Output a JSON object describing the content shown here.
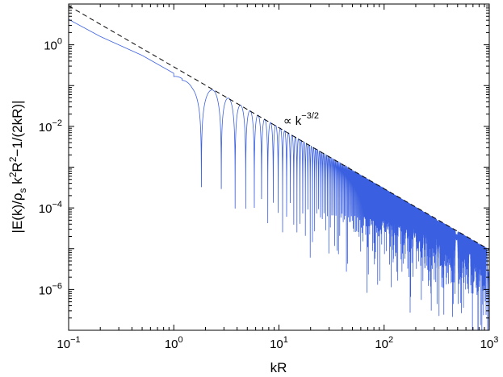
{
  "chart_data": {
    "type": "line",
    "title": "",
    "xlabel": "kR",
    "ylabel_parts": {
      "a": "|E(k)/ρ",
      "sub_s": "s",
      "b": " k",
      "sup_2a": "2",
      "c": "R",
      "sup_2b": "2",
      "d": "−1/(2kR)|"
    },
    "x_scale": "log",
    "y_scale": "log",
    "xlim": [
      0.1,
      1000
    ],
    "ylim": [
      1e-07,
      10
    ],
    "x_ticks": [
      {
        "value": 0.1,
        "base": "10",
        "exp": "−1"
      },
      {
        "value": 1,
        "base": "10",
        "exp": "0"
      },
      {
        "value": 10,
        "base": "10",
        "exp": "1"
      },
      {
        "value": 100,
        "base": "10",
        "exp": "2"
      },
      {
        "value": 1000,
        "base": "10",
        "exp": "3"
      }
    ],
    "y_ticks": [
      {
        "value": 1e-06,
        "base": "10",
        "exp": "−6"
      },
      {
        "value": 0.0001,
        "base": "10",
        "exp": "−4"
      },
      {
        "value": 0.01,
        "base": "10",
        "exp": "−2"
      },
      {
        "value": 1,
        "base": "10",
        "exp": "0"
      }
    ],
    "grid": false,
    "series": [
      {
        "style": "solid",
        "color": "#3a5fe0",
        "description_points": {
          "x": [
            0.1,
            0.2,
            0.5,
            1.0,
            1.5,
            1.83,
            2.5,
            3.5,
            4.5,
            5.6,
            7,
            10,
            30,
            100,
            300,
            1000
          ],
          "y": [
            4.2,
            1.6,
            0.55,
            0.2,
            0.04,
            6e-05,
            0.075,
            8e-05,
            0.03,
            6e-05,
            0.018,
            0.01,
            0.002,
            0.0003,
            6e-05,
            1e-05
          ]
        }
      },
      {
        "style": "dashed",
        "color": "#000000",
        "x": [
          0.1,
          1000
        ],
        "y": [
          9.0,
          9.5e-06
        ]
      }
    ],
    "annotation": {
      "prefix": "∝ k",
      "exp": "−3/2",
      "x": 11,
      "y": 0.011
    }
  }
}
